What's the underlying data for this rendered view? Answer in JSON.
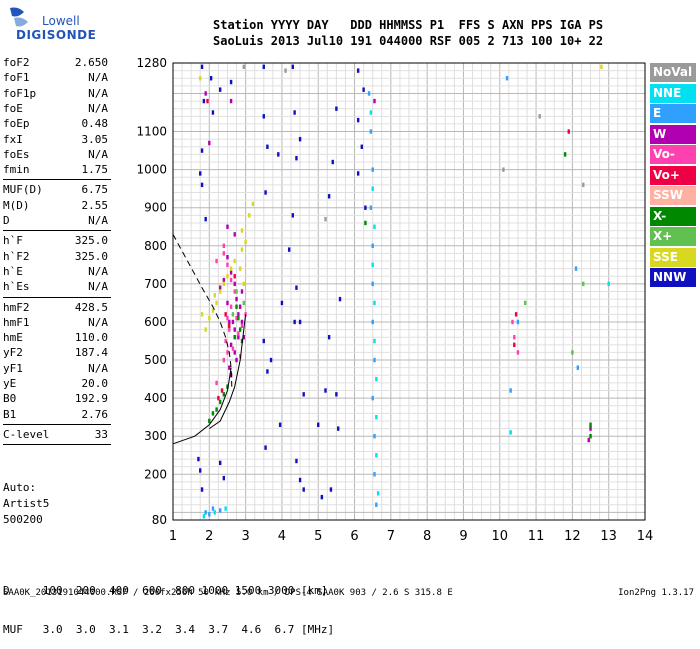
{
  "logo": {
    "top": "Lowell",
    "bottom": "DIGISONDE"
  },
  "header": {
    "line1": "Station YYYY DAY   DDD HHMMSS P1  FFS S AXN PPS IGA PS",
    "line2": "SaoLuis 2013 Jul10 191 044000 RSF 005 2 713 100 10+ 22"
  },
  "params": [
    {
      "k": "foF2",
      "v": "2.650"
    },
    {
      "k": "foF1",
      "v": "N/A"
    },
    {
      "k": "foF1p",
      "v": "N/A"
    },
    {
      "k": "foE",
      "v": "N/A"
    },
    {
      "k": "foEp",
      "v": "0.48"
    },
    {
      "k": "fxI",
      "v": "3.05"
    },
    {
      "k": "foEs",
      "v": "N/A"
    },
    {
      "k": "fmin",
      "v": "1.75"
    },
    {
      "k": "MUF(D)",
      "v": "6.75"
    },
    {
      "k": "M(D)",
      "v": "2.55"
    },
    {
      "k": "D",
      "v": "N/A"
    },
    {
      "k": "h`F",
      "v": "325.0"
    },
    {
      "k": "h`F2",
      "v": "325.0"
    },
    {
      "k": "h`E",
      "v": "N/A"
    },
    {
      "k": "h`Es",
      "v": "N/A"
    },
    {
      "k": "hmF2",
      "v": "428.5"
    },
    {
      "k": "hmF1",
      "v": "N/A"
    },
    {
      "k": "hmE",
      "v": "110.0"
    },
    {
      "k": "yF2",
      "v": "187.4"
    },
    {
      "k": "yF1",
      "v": "N/A"
    },
    {
      "k": "yE",
      "v": "20.0"
    },
    {
      "k": "B0",
      "v": "192.9"
    },
    {
      "k": "B1",
      "v": "2.76"
    },
    {
      "k": "C-level",
      "v": "33"
    }
  ],
  "auto": {
    "l1": "Auto:",
    "l2": "Artist5",
    "l3": "500200"
  },
  "legend": [
    {
      "label": "NoVal",
      "color": "#9a9a9a"
    },
    {
      "label": "NNE",
      "color": "#00e0f0"
    },
    {
      "label": "E",
      "color": "#30a0ff"
    },
    {
      "label": "W",
      "color": "#b000b0"
    },
    {
      "label": "Vo-",
      "color": "#ff40b0"
    },
    {
      "label": "Vo+",
      "color": "#ee0044"
    },
    {
      "label": "SSW",
      "color": "#ffb0a0"
    },
    {
      "label": "X-",
      "color": "#008800"
    },
    {
      "label": "X+",
      "color": "#60c050"
    },
    {
      "label": "SSE",
      "color": "#d8d820"
    },
    {
      "label": "NNW",
      "color": "#1010c0"
    }
  ],
  "muf_table": {
    "row1": "D     100  200  400  600  800 1000 1500 3000 [km]",
    "row2": "MUF   3.0  3.0  3.1  3.2  3.4  3.7  4.6  6.7 [MHz]"
  },
  "footer": "SAA0K_2013191044000.RSF / 260fx256h 50 kHz 5.0 km / DPS-4 SAA0K 903 / 2.6 S 315.8 E",
  "version": "Ion2Png 1.3.17",
  "chart_data": {
    "type": "scatter",
    "title": "",
    "xlabel": "",
    "ylabel": "",
    "xlim": [
      1,
      14
    ],
    "ylim": [
      80,
      1280
    ],
    "x_ticks": [
      1,
      2,
      3,
      4,
      5,
      6,
      7,
      8,
      9,
      10,
      11,
      12,
      13,
      14
    ],
    "y_ticks": [
      80,
      200,
      300,
      400,
      500,
      600,
      700,
      800,
      900,
      1000,
      1100,
      1280
    ],
    "grid": true,
    "legend_position": "right",
    "series": [
      {
        "name": "NNW",
        "color": "#1010c0",
        "points": [
          [
            1.8,
            1270
          ],
          [
            1.85,
            1180
          ],
          [
            1.8,
            1050
          ],
          [
            1.75,
            990
          ],
          [
            1.8,
            960
          ],
          [
            1.9,
            870
          ],
          [
            2.05,
            1240
          ],
          [
            2.1,
            1150
          ],
          [
            2.3,
            1210
          ],
          [
            2.6,
            1230
          ],
          [
            3.5,
            1270
          ],
          [
            3.5,
            1140
          ],
          [
            3.6,
            1060
          ],
          [
            3.55,
            940
          ],
          [
            3.9,
            1040
          ],
          [
            4.3,
            1270
          ],
          [
            4.35,
            1150
          ],
          [
            4.4,
            1030
          ],
          [
            4.3,
            880
          ],
          [
            4.5,
            1080
          ],
          [
            5.5,
            1160
          ],
          [
            5.4,
            1020
          ],
          [
            5.3,
            930
          ],
          [
            4.2,
            790
          ],
          [
            4.4,
            690
          ],
          [
            4.35,
            600
          ],
          [
            4.0,
            650
          ],
          [
            3.5,
            550
          ],
          [
            3.7,
            500
          ],
          [
            3.6,
            470
          ],
          [
            3.95,
            330
          ],
          [
            4.5,
            600
          ],
          [
            4.6,
            410
          ],
          [
            5.5,
            410
          ],
          [
            5.55,
            320
          ],
          [
            5.0,
            330
          ],
          [
            5.3,
            560
          ],
          [
            5.6,
            660
          ],
          [
            5.2,
            420
          ],
          [
            3.55,
            270
          ],
          [
            1.7,
            240
          ],
          [
            1.75,
            210
          ],
          [
            1.8,
            160
          ],
          [
            2.3,
            230
          ],
          [
            2.4,
            190
          ],
          [
            4.4,
            235
          ],
          [
            4.5,
            185
          ],
          [
            4.6,
            160
          ],
          [
            5.1,
            140
          ],
          [
            5.35,
            160
          ],
          [
            6.1,
            1260
          ],
          [
            6.1,
            1130
          ],
          [
            6.2,
            1060
          ],
          [
            6.1,
            990
          ],
          [
            6.3,
            900
          ],
          [
            6.25,
            1210
          ]
        ]
      },
      {
        "name": "W",
        "color": "#b000b0",
        "points": [
          [
            2.5,
            770
          ],
          [
            2.6,
            730
          ],
          [
            2.7,
            700
          ],
          [
            2.75,
            660
          ],
          [
            2.8,
            620
          ],
          [
            2.65,
            600
          ],
          [
            2.7,
            580
          ],
          [
            2.8,
            560
          ],
          [
            2.6,
            540
          ],
          [
            2.7,
            520
          ],
          [
            2.85,
            640
          ],
          [
            2.9,
            680
          ],
          [
            2.4,
            710
          ],
          [
            2.3,
            690
          ],
          [
            2.5,
            650
          ],
          [
            2.55,
            600
          ],
          [
            2.9,
            600
          ],
          [
            2.95,
            560
          ],
          [
            2.75,
            500
          ],
          [
            2.55,
            480
          ],
          [
            2.6,
            460
          ],
          [
            2.5,
            850
          ],
          [
            2.7,
            830
          ],
          [
            1.9,
            1200
          ],
          [
            2.0,
            1070
          ],
          [
            2.6,
            1180
          ],
          [
            6.55,
            1180
          ],
          [
            12.5,
            320
          ],
          [
            12.45,
            290
          ]
        ]
      },
      {
        "name": "Vo-",
        "color": "#ff40b0",
        "points": [
          [
            2.4,
            800
          ],
          [
            2.5,
            750
          ],
          [
            2.6,
            710
          ],
          [
            2.7,
            680
          ],
          [
            2.6,
            640
          ],
          [
            2.5,
            610
          ],
          [
            2.55,
            580
          ],
          [
            2.45,
            550
          ],
          [
            2.65,
            530
          ],
          [
            2.8,
            570
          ],
          [
            2.9,
            590
          ],
          [
            3.0,
            620
          ],
          [
            2.75,
            610
          ],
          [
            2.85,
            510
          ],
          [
            2.5,
            520
          ],
          [
            2.4,
            500
          ],
          [
            2.2,
            440
          ],
          [
            2.4,
            780
          ],
          [
            2.2,
            760
          ],
          [
            10.4,
            560
          ],
          [
            10.35,
            600
          ],
          [
            10.5,
            520
          ]
        ]
      },
      {
        "name": "Vo+",
        "color": "#ee0044",
        "points": [
          [
            2.45,
            620
          ],
          [
            2.55,
            590
          ],
          [
            2.7,
            720
          ],
          [
            2.25,
            400
          ],
          [
            2.35,
            420
          ],
          [
            1.95,
            1180
          ],
          [
            10.4,
            540
          ],
          [
            11.9,
            1100
          ],
          [
            10.45,
            620
          ]
        ]
      },
      {
        "name": "SSE",
        "color": "#d8d820",
        "points": [
          [
            2.2,
            650
          ],
          [
            2.3,
            680
          ],
          [
            2.4,
            700
          ],
          [
            2.5,
            720
          ],
          [
            2.6,
            740
          ],
          [
            2.7,
            760
          ],
          [
            2.9,
            790
          ],
          [
            3.0,
            810
          ],
          [
            2.9,
            840
          ],
          [
            3.1,
            880
          ],
          [
            3.2,
            910
          ],
          [
            1.8,
            620
          ],
          [
            1.9,
            580
          ],
          [
            2.0,
            610
          ],
          [
            2.1,
            630
          ],
          [
            2.15,
            670
          ],
          [
            2.85,
            740
          ],
          [
            2.95,
            700
          ],
          [
            1.75,
            1240
          ],
          [
            12.8,
            1270
          ]
        ]
      },
      {
        "name": "X-",
        "color": "#008800",
        "points": [
          [
            2.75,
            640
          ],
          [
            2.8,
            610
          ],
          [
            2.85,
            580
          ],
          [
            2.7,
            560
          ],
          [
            2.9,
            550
          ],
          [
            2.0,
            340
          ],
          [
            2.1,
            360
          ],
          [
            2.2,
            370
          ],
          [
            2.3,
            390
          ],
          [
            2.4,
            410
          ],
          [
            2.5,
            430
          ],
          [
            12.5,
            330
          ],
          [
            12.5,
            300
          ],
          [
            11.8,
            1040
          ],
          [
            6.3,
            860
          ]
        ]
      },
      {
        "name": "X+",
        "color": "#60c050",
        "points": [
          [
            2.75,
            680
          ],
          [
            2.65,
            620
          ],
          [
            2.95,
            650
          ],
          [
            10.7,
            650
          ],
          [
            12.3,
            700
          ],
          [
            12.0,
            520
          ]
        ]
      },
      {
        "name": "E",
        "color": "#30a0ff",
        "points": [
          [
            6.4,
            1200
          ],
          [
            6.45,
            1100
          ],
          [
            6.5,
            1000
          ],
          [
            6.45,
            900
          ],
          [
            6.5,
            800
          ],
          [
            6.5,
            700
          ],
          [
            6.5,
            600
          ],
          [
            6.55,
            500
          ],
          [
            6.5,
            400
          ],
          [
            6.55,
            300
          ],
          [
            6.55,
            200
          ],
          [
            6.6,
            120
          ],
          [
            1.9,
            100
          ],
          [
            2.0,
            95
          ],
          [
            2.1,
            110
          ],
          [
            2.3,
            105
          ],
          [
            10.2,
            1240
          ],
          [
            12.1,
            740
          ],
          [
            12.15,
            480
          ],
          [
            10.3,
            420
          ],
          [
            10.5,
            600
          ]
        ]
      },
      {
        "name": "NNE",
        "color": "#00e0f0",
        "points": [
          [
            6.45,
            1150
          ],
          [
            6.5,
            950
          ],
          [
            6.55,
            850
          ],
          [
            6.5,
            750
          ],
          [
            6.55,
            650
          ],
          [
            6.55,
            550
          ],
          [
            6.6,
            450
          ],
          [
            6.6,
            350
          ],
          [
            6.6,
            250
          ],
          [
            6.65,
            150
          ],
          [
            1.85,
            90
          ],
          [
            2.15,
            100
          ],
          [
            2.45,
            110
          ],
          [
            13.0,
            700
          ],
          [
            10.3,
            310
          ]
        ]
      },
      {
        "name": "NoVal",
        "color": "#9a9a9a",
        "points": [
          [
            5.2,
            870
          ],
          [
            2.95,
            1270
          ],
          [
            4.1,
            1260
          ],
          [
            10.1,
            1000
          ],
          [
            11.1,
            1140
          ],
          [
            12.3,
            960
          ]
        ]
      }
    ]
  }
}
